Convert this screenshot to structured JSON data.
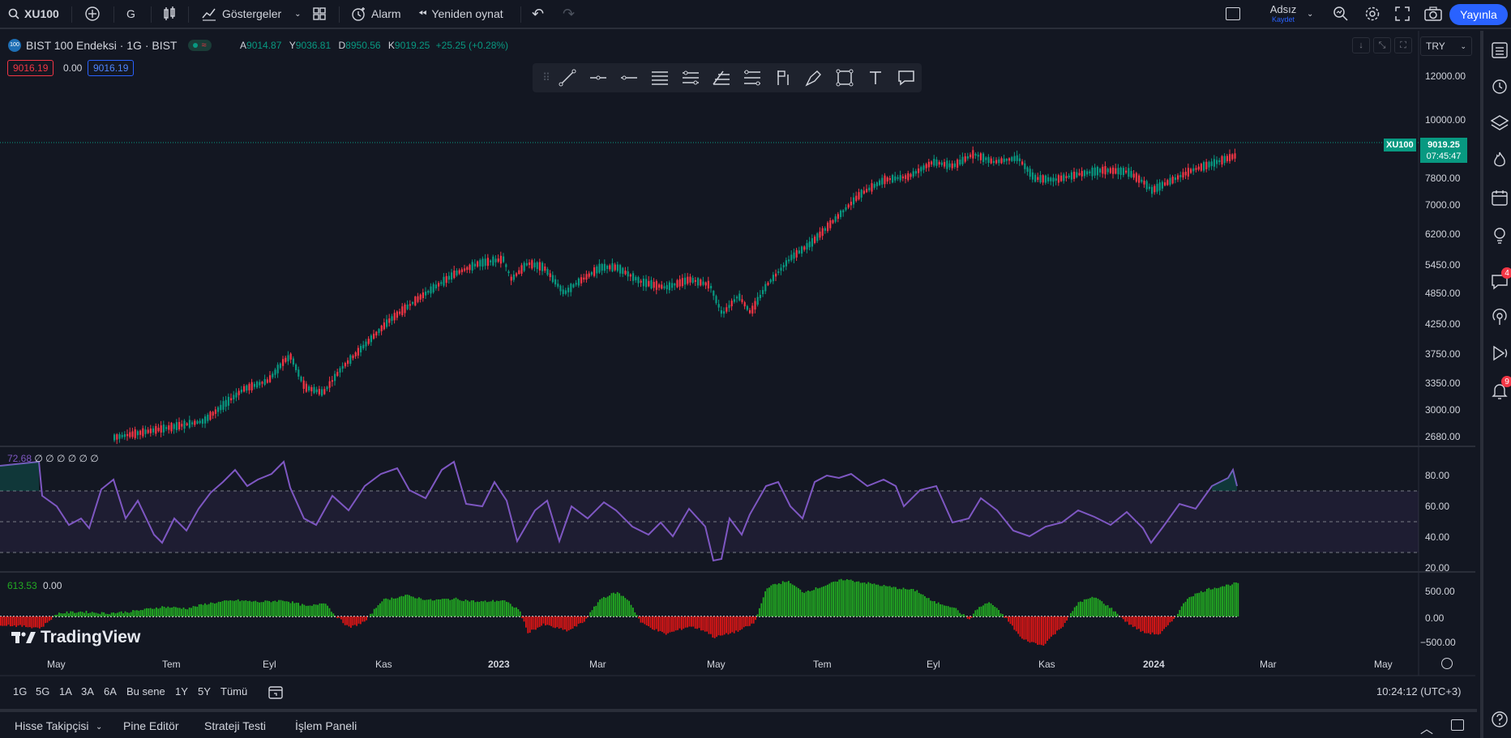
{
  "topbar": {
    "symbol": "XU100",
    "interval": "G",
    "indicators": "Göstergeler",
    "alarm": "Alarm",
    "replay": "Yeniden oynat",
    "layout_name": "Adsız",
    "save": "Kaydet",
    "publish": "Yayınla"
  },
  "legend": {
    "title": "BIST 100 Endeksi · 1G · BIST",
    "o_label": "A",
    "o_value": "9014.87",
    "h_label": "Y",
    "h_value": "9036.81",
    "l_label": "D",
    "l_value": "8950.56",
    "c_label": "K",
    "c_value": "9019.25",
    "change": "+25.25 (+0.28%)",
    "sell_price": "9016.19",
    "spread": "0.00",
    "buy_price": "9016.19"
  },
  "currency": "TRY",
  "price_axis": {
    "labels": [
      "12000.00",
      "10000.00",
      "7800.00",
      "7000.00",
      "6200.00",
      "5450.00",
      "4850.00",
      "4250.00",
      "3750.00",
      "3350.00",
      "3000.00",
      "2680.00"
    ],
    "last_symbol": "XU100",
    "last_price": "9019.25",
    "countdown": "07:45:47"
  },
  "rsi": {
    "header_value": "72.68",
    "header_params": "∅ ∅ ∅ ∅ ∅ ∅",
    "axis": [
      "80.00",
      "60.00",
      "40.00",
      "20.00"
    ]
  },
  "osc": {
    "header_value1": "613.53",
    "header_value2": "0.00",
    "axis": [
      "500.00",
      "0.00",
      "−500.00"
    ]
  },
  "time_axis": [
    "May",
    "Tem",
    "Eyl",
    "Kas",
    "2023",
    "Mar",
    "May",
    "Tem",
    "Eyl",
    "Kas",
    "2024",
    "Mar",
    "May"
  ],
  "ranges": [
    "1G",
    "5G",
    "1A",
    "3A",
    "6A",
    "Bu sene",
    "1Y",
    "5Y",
    "Tümü"
  ],
  "clock": "10:24:12 (UTC+3)",
  "bottom_tabs": [
    "Hisse Takipçisi",
    "Pine Editör",
    "Strateji Testi",
    "İşlem Paneli"
  ],
  "brand": "TradingView",
  "badges": {
    "ideas": "4",
    "alerts": "9"
  },
  "colors": {
    "up": "#089981",
    "down": "#f23645",
    "rsi": "#7e57c2",
    "accent": "#2962ff",
    "hist_up": "#22ab22",
    "hist_down": "#e01515"
  }
}
